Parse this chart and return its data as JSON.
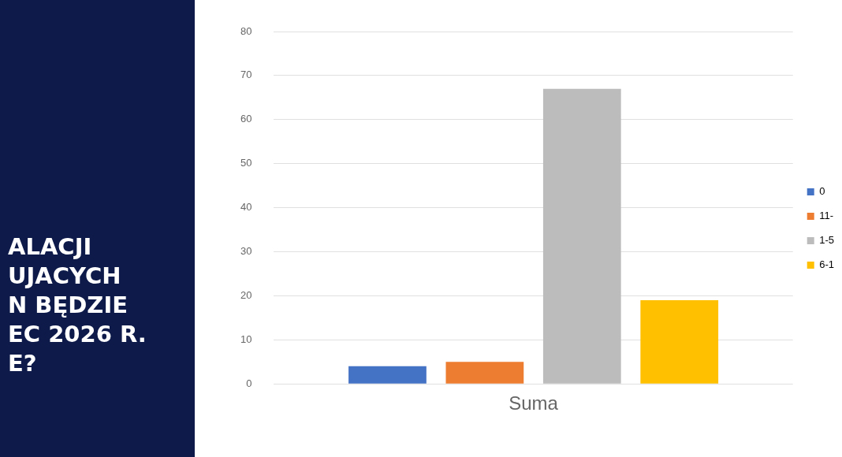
{
  "chart_data": {
    "type": "bar",
    "title": "ALACJI\nUJACYCH\nN BĘDZIE\nEC 2026 R.\nE?",
    "categories": [
      "Suma"
    ],
    "series": [
      {
        "name": "0",
        "color": "#4472c4",
        "values": [
          4
        ]
      },
      {
        "name": "11-",
        "color": "#ed7d31",
        "values": [
          5
        ]
      },
      {
        "name": "1-5",
        "color": "#bcbcbc",
        "values": [
          67
        ]
      },
      {
        "name": "6-1",
        "color": "#ffc000",
        "values": [
          19
        ]
      }
    ],
    "ylim": [
      0,
      80
    ],
    "yticks": [
      0,
      10,
      20,
      30,
      40,
      50,
      60,
      70,
      80
    ],
    "grid": "y",
    "legend": "right"
  }
}
